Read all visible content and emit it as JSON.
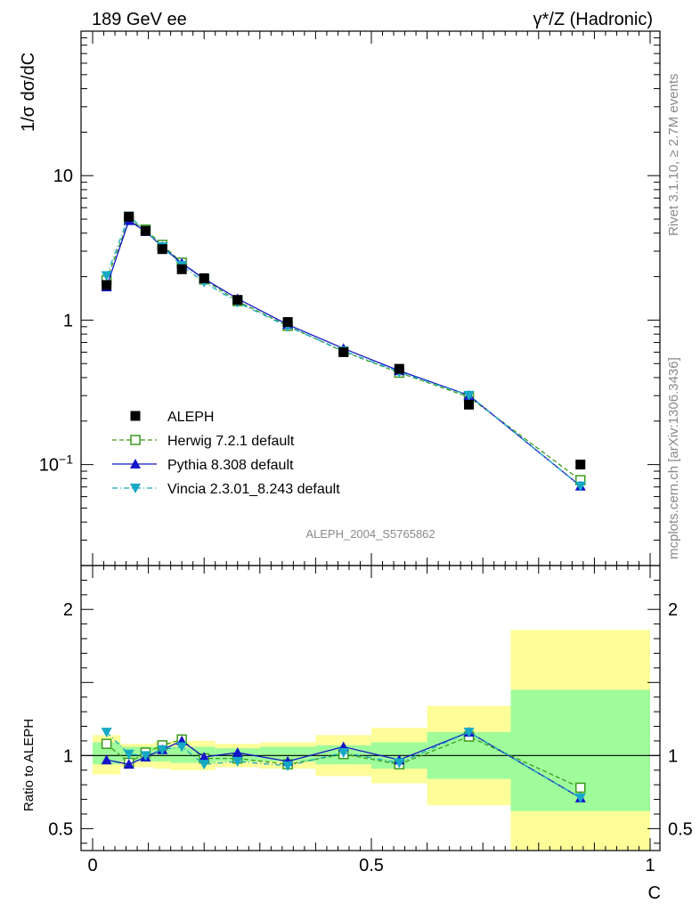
{
  "chart_data": {
    "type": "scatter",
    "title_left": "189 GeV ee",
    "title_right": "γ*/Z (Hadronic)",
    "ylabel_top": "1/σ  dσ/dC",
    "ylabel_bottom": "Ratio to ALEPH",
    "xlabel": "C",
    "analysis_label": "ALEPH_2004_S5765862",
    "side_text_top": "Rivet 3.1.10, ≥ 2.7M events",
    "side_text_bottom": "mcplots.cern.ch [arXiv:1306.3436]",
    "xlim": [
      0,
      1
    ],
    "ylim_top_log": [
      0.02,
      100
    ],
    "ylim_bottom": [
      0.35,
      2.3
    ],
    "x_ticks": [
      {
        "v": 0,
        "label": "0"
      },
      {
        "v": 0.5,
        "label": "0.5"
      },
      {
        "v": 1,
        "label": "1"
      }
    ],
    "y_ticks_top": [
      {
        "v": 0.1,
        "label": "10",
        "sup": "−1"
      },
      {
        "v": 1,
        "label": "1"
      },
      {
        "v": 10,
        "label": "10"
      }
    ],
    "y_ticks_bottom": [
      {
        "v": 0.5,
        "label": "0.5"
      },
      {
        "v": 1,
        "label": "1"
      },
      {
        "v": 2,
        "label": "2"
      }
    ],
    "bins": [
      [
        0.0,
        0.05
      ],
      [
        0.05,
        0.08
      ],
      [
        0.08,
        0.11
      ],
      [
        0.11,
        0.14
      ],
      [
        0.14,
        0.18
      ],
      [
        0.18,
        0.22
      ],
      [
        0.22,
        0.3
      ],
      [
        0.3,
        0.4
      ],
      [
        0.4,
        0.5
      ],
      [
        0.5,
        0.6
      ],
      [
        0.6,
        0.75
      ],
      [
        0.75,
        1.0
      ]
    ],
    "x": [
      0.025,
      0.065,
      0.095,
      0.125,
      0.16,
      0.2,
      0.26,
      0.35,
      0.45,
      0.55,
      0.675,
      0.875
    ],
    "data_name": "ALEPH",
    "data_values": [
      1.75,
      5.2,
      4.15,
      3.1,
      2.25,
      1.95,
      1.38,
      0.97,
      0.6,
      0.46,
      0.26,
      0.1
    ],
    "band_inner": [
      [
        0.94,
        1.09
      ],
      [
        0.96,
        1.06
      ],
      [
        0.96,
        1.06
      ],
      [
        0.96,
        1.06
      ],
      [
        0.95,
        1.06
      ],
      [
        0.95,
        1.06
      ],
      [
        0.96,
        1.05
      ],
      [
        0.96,
        1.06
      ],
      [
        0.94,
        1.07
      ],
      [
        0.91,
        1.09
      ],
      [
        0.84,
        1.16
      ],
      [
        0.62,
        1.45
      ]
    ],
    "band_outer": [
      [
        0.87,
        1.14
      ],
      [
        0.92,
        1.08
      ],
      [
        0.92,
        1.08
      ],
      [
        0.91,
        1.09
      ],
      [
        0.9,
        1.1
      ],
      [
        0.9,
        1.1
      ],
      [
        0.92,
        1.08
      ],
      [
        0.91,
        1.09
      ],
      [
        0.86,
        1.14
      ],
      [
        0.81,
        1.19
      ],
      [
        0.66,
        1.34
      ],
      [
        0.35,
        1.86
      ]
    ],
    "series": [
      {
        "name": "Herwig 7.2.1 default",
        "color": "#3a9a1e",
        "marker": "open-square",
        "dash": "5,3",
        "ratio": [
          1.08,
          0.95,
          1.02,
          1.07,
          1.11,
          0.98,
          0.98,
          0.94,
          1.01,
          0.94,
          1.13,
          0.78
        ]
      },
      {
        "name": "Pythia 8.308 default",
        "color": "#1414c8",
        "marker": "triangle-up",
        "dash": "",
        "ratio": [
          0.97,
          0.94,
          0.99,
          1.04,
          1.1,
          0.99,
          1.02,
          0.96,
          1.06,
          0.97,
          1.16,
          0.71
        ]
      },
      {
        "name": "Vincia 2.3.01_8.243 default",
        "color": "#16a8c4",
        "marker": "triangle-down",
        "dash": "6,3,1,3",
        "ratio": [
          1.16,
          1.01,
          1.0,
          1.04,
          1.06,
          0.94,
          0.96,
          0.93,
          1.02,
          0.95,
          1.16,
          0.71
        ]
      }
    ],
    "colors": {
      "inner": "#9efc9a",
      "outer": "#fdfd9a",
      "data": "#000000"
    }
  }
}
